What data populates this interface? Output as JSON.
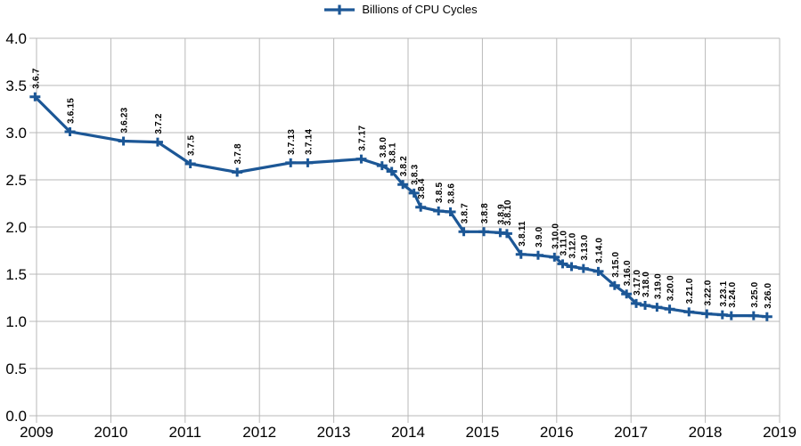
{
  "chart_data": {
    "type": "line",
    "title": "",
    "xlabel": "",
    "ylabel": "",
    "legend": [
      "Billions of CPU Cycles"
    ],
    "legend_position": "top-center",
    "grid": true,
    "colors": {
      "series": "#1c5796",
      "grid": "#b9b9b9",
      "tick": "#b9b9b9",
      "text": "#000000",
      "background": "#ffffff"
    },
    "xlim": [
      2009,
      2019
    ],
    "ylim": [
      0.0,
      4.0
    ],
    "x_ticks": [
      2009,
      2010,
      2011,
      2012,
      2013,
      2014,
      2015,
      2016,
      2017,
      2018,
      2019
    ],
    "x_tick_labels": [
      "2009",
      "2010",
      "2011",
      "2012",
      "2013",
      "2014",
      "2015",
      "2016",
      "2017",
      "2018",
      "2019"
    ],
    "y_ticks": [
      0.0,
      0.5,
      1.0,
      1.5,
      2.0,
      2.5,
      3.0,
      3.5,
      4.0
    ],
    "y_tick_labels": [
      "0.0",
      "0.5",
      "1.0",
      "1.5",
      "2.0",
      "2.5",
      "3.0",
      "3.5",
      "4.0"
    ],
    "marker": "plus",
    "point_labels_rotation_deg": -90,
    "series": [
      {
        "name": "Billions of CPU Cycles",
        "points": [
          {
            "label": "3.6.7",
            "x": 2008.98,
            "y": 3.38
          },
          {
            "label": "3.6.15",
            "x": 2009.45,
            "y": 3.01
          },
          {
            "label": "3.6.23",
            "x": 2010.17,
            "y": 2.91
          },
          {
            "label": "3.7.2",
            "x": 2010.63,
            "y": 2.9
          },
          {
            "label": "3.7.5",
            "x": 2011.07,
            "y": 2.67
          },
          {
            "label": "3.7.8",
            "x": 2011.7,
            "y": 2.58
          },
          {
            "label": "3.7.13",
            "x": 2012.42,
            "y": 2.68
          },
          {
            "label": "3.7.14",
            "x": 2012.65,
            "y": 2.68
          },
          {
            "label": "3.7.17",
            "x": 2013.37,
            "y": 2.72
          },
          {
            "label": "3.8.0",
            "x": 2013.65,
            "y": 2.65
          },
          {
            "label": "3.8.1",
            "x": 2013.78,
            "y": 2.59
          },
          {
            "label": "3.8.2",
            "x": 2013.93,
            "y": 2.45
          },
          {
            "label": "3.8.3",
            "x": 2014.08,
            "y": 2.36
          },
          {
            "label": "3.8.4",
            "x": 2014.17,
            "y": 2.21
          },
          {
            "label": "3.8.5",
            "x": 2014.41,
            "y": 2.17
          },
          {
            "label": "3.8.6",
            "x": 2014.57,
            "y": 2.16
          },
          {
            "label": "3.8.7",
            "x": 2014.75,
            "y": 1.95
          },
          {
            "label": "3.8.8",
            "x": 2015.02,
            "y": 1.95
          },
          {
            "label": "3.8.9",
            "x": 2015.24,
            "y": 1.94
          },
          {
            "label": "3.8.10",
            "x": 2015.33,
            "y": 1.93
          },
          {
            "label": "3.8.11",
            "x": 2015.52,
            "y": 1.71
          },
          {
            "label": "3.9.0",
            "x": 2015.75,
            "y": 1.7
          },
          {
            "label": "3.10.0",
            "x": 2015.97,
            "y": 1.68
          },
          {
            "label": "3.11.0",
            "x": 2016.08,
            "y": 1.61
          },
          {
            "label": "3.12.0",
            "x": 2016.2,
            "y": 1.58
          },
          {
            "label": "3.13.0",
            "x": 2016.36,
            "y": 1.56
          },
          {
            "label": "3.14.0",
            "x": 2016.56,
            "y": 1.53
          },
          {
            "label": "3.15.0",
            "x": 2016.78,
            "y": 1.38
          },
          {
            "label": "3.16.0",
            "x": 2016.94,
            "y": 1.29
          },
          {
            "label": "3.17.0",
            "x": 2017.07,
            "y": 1.19
          },
          {
            "label": "3.18.0",
            "x": 2017.19,
            "y": 1.17
          },
          {
            "label": "3.19.0",
            "x": 2017.35,
            "y": 1.15
          },
          {
            "label": "3.20.0",
            "x": 2017.52,
            "y": 1.13
          },
          {
            "label": "3.21.0",
            "x": 2017.78,
            "y": 1.1
          },
          {
            "label": "3.22.0",
            "x": 2018.02,
            "y": 1.08
          },
          {
            "label": "3.23.1",
            "x": 2018.23,
            "y": 1.07
          },
          {
            "label": "3.24.0",
            "x": 2018.35,
            "y": 1.06
          },
          {
            "label": "3.25.0",
            "x": 2018.65,
            "y": 1.06
          },
          {
            "label": "3.26.0",
            "x": 2018.83,
            "y": 1.05
          }
        ]
      }
    ]
  }
}
